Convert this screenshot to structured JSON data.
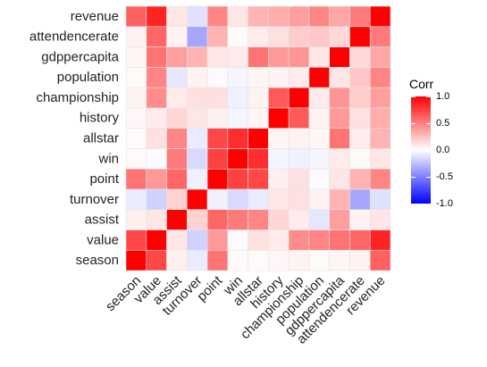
{
  "chart_data": {
    "type": "heatmap",
    "title": "",
    "xlabel": "",
    "ylabel": "",
    "labels": [
      "season",
      "value",
      "assist",
      "turnover",
      "point",
      "win",
      "allstar",
      "history",
      "championship",
      "population",
      "gdppercapita",
      "attendencerate",
      "revenue"
    ],
    "matrix": [
      [
        1.0,
        0.72,
        0.06,
        -0.08,
        0.55,
        0.02,
        0.02,
        0.03,
        0.05,
        0.02,
        0.04,
        0.05,
        0.62
      ],
      [
        0.72,
        1.0,
        0.1,
        -0.18,
        0.4,
        -0.02,
        0.12,
        0.08,
        0.45,
        0.48,
        0.55,
        0.6,
        0.86
      ],
      [
        0.06,
        0.1,
        1.0,
        0.18,
        0.6,
        0.52,
        0.48,
        0.16,
        0.08,
        -0.1,
        0.38,
        0.05,
        0.1
      ],
      [
        -0.08,
        -0.18,
        0.18,
        1.0,
        -0.06,
        -0.15,
        -0.08,
        0.1,
        0.12,
        0.05,
        0.3,
        -0.35,
        -0.12
      ],
      [
        0.55,
        0.4,
        0.6,
        -0.06,
        1.0,
        0.75,
        0.72,
        0.06,
        0.12,
        -0.02,
        0.1,
        0.3,
        0.48
      ],
      [
        0.02,
        -0.02,
        0.52,
        -0.15,
        0.75,
        1.0,
        0.82,
        -0.04,
        -0.06,
        -0.04,
        0.08,
        0.02,
        0.1
      ],
      [
        0.02,
        0.12,
        0.48,
        -0.08,
        0.72,
        0.82,
        1.0,
        0.04,
        0.05,
        0.04,
        0.55,
        0.07,
        0.3
      ],
      [
        0.03,
        0.08,
        0.16,
        0.1,
        0.06,
        -0.04,
        0.04,
        1.0,
        0.65,
        0.05,
        0.4,
        0.12,
        0.32
      ],
      [
        0.05,
        0.45,
        0.08,
        0.12,
        0.12,
        -0.06,
        0.05,
        0.65,
        1.0,
        0.08,
        0.42,
        0.2,
        0.38
      ],
      [
        0.02,
        0.48,
        -0.1,
        0.05,
        -0.02,
        -0.04,
        0.04,
        0.05,
        0.08,
        1.0,
        0.1,
        0.22,
        0.48
      ],
      [
        0.04,
        0.55,
        0.38,
        0.3,
        0.1,
        0.08,
        0.55,
        0.4,
        0.42,
        0.1,
        1.0,
        0.15,
        0.35
      ],
      [
        0.05,
        0.6,
        0.05,
        -0.35,
        0.3,
        0.02,
        0.07,
        0.12,
        0.2,
        0.22,
        0.15,
        1.0,
        0.52
      ],
      [
        0.62,
        0.86,
        0.1,
        -0.12,
        0.48,
        0.1,
        0.3,
        0.32,
        0.38,
        0.48,
        0.35,
        0.52,
        1.0
      ]
    ],
    "color_scale": {
      "low": "#0000ff",
      "mid": "#ffffff",
      "high": "#ff0000",
      "limits": [
        -1,
        1
      ]
    },
    "grid": true,
    "legend": {
      "title": "Corr",
      "position": "right",
      "ticks": [
        1.0,
        0.5,
        0.0,
        -0.5,
        -1.0
      ],
      "tick_labels": [
        "1.0",
        "0.5",
        "0.0",
        "-0.5",
        "-1.0"
      ]
    }
  }
}
